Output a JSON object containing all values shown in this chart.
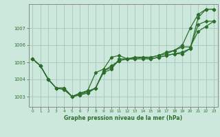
{
  "title": "Graphe pression niveau de la mer (hPa)",
  "bg_color": "#cce8dc",
  "grid_color": "#aaccbb",
  "line_color": "#2d6e2d",
  "text_color": "#2d6e2d",
  "xlim": [
    -0.5,
    23.5
  ],
  "ylim": [
    1002.4,
    1008.4
  ],
  "yticks": [
    1003,
    1004,
    1005,
    1006,
    1007
  ],
  "xticks": [
    0,
    1,
    2,
    3,
    4,
    5,
    6,
    7,
    8,
    9,
    10,
    11,
    12,
    13,
    14,
    15,
    16,
    17,
    18,
    19,
    20,
    21,
    22,
    23
  ],
  "lines": [
    [
      1005.2,
      1004.8,
      1004.0,
      1003.5,
      1003.5,
      1003.0,
      1003.1,
      1003.3,
      1003.5,
      1004.4,
      1004.6,
      1005.2,
      1005.2,
      1005.3,
      1005.3,
      1005.2,
      1005.3,
      1005.4,
      1005.5,
      1005.5,
      1005.8,
      1007.2,
      1007.4,
      1007.4
    ],
    [
      1005.2,
      1004.8,
      1004.0,
      1003.5,
      1003.5,
      1003.0,
      1003.1,
      1003.2,
      1003.5,
      1004.5,
      1004.7,
      1005.1,
      1005.2,
      1005.2,
      1005.2,
      1005.2,
      1005.3,
      1005.4,
      1005.5,
      1005.6,
      1005.8,
      1007.6,
      1008.1,
      1008.1
    ],
    [
      1005.2,
      1004.8,
      1004.0,
      1003.5,
      1003.4,
      1003.0,
      1003.2,
      1003.35,
      1004.4,
      1004.6,
      1005.3,
      1005.4,
      1005.2,
      1005.2,
      1005.3,
      1005.3,
      1005.4,
      1005.5,
      1005.7,
      1006.0,
      1007.0,
      1007.8,
      1008.1,
      1008.1
    ],
    [
      1005.2,
      1004.8,
      1004.0,
      1003.5,
      1003.5,
      1003.0,
      1003.2,
      1003.3,
      1003.5,
      1004.5,
      1004.8,
      1005.1,
      1005.2,
      1005.3,
      1005.3,
      1005.3,
      1005.4,
      1005.6,
      1005.7,
      1005.9,
      1005.9,
      1006.8,
      1007.1,
      1007.4
    ]
  ]
}
